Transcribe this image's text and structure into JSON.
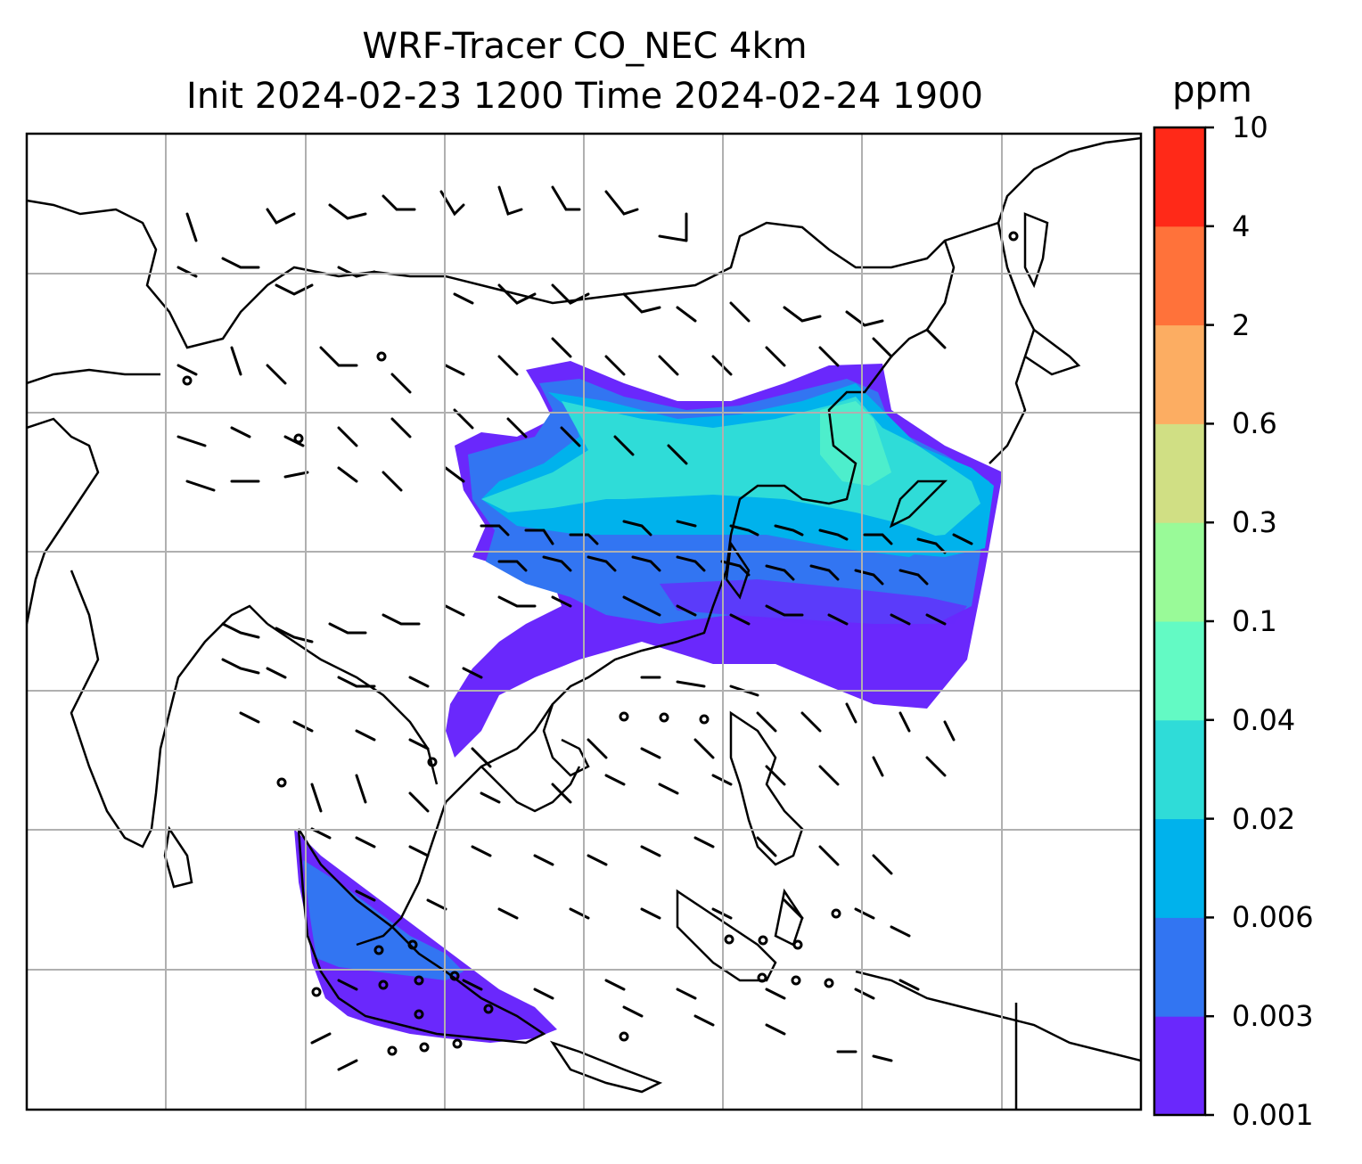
{
  "title": {
    "line1": "WRF-Tracer CO_NEC 4km",
    "line2": "Init 2024-02-23 1200 Time 2024-02-24 1900"
  },
  "colorbar": {
    "unit": "ppm",
    "levels": [
      "0.001",
      "0.003",
      "0.006",
      "0.02",
      "0.04",
      "0.1",
      "0.3",
      "0.6",
      "2",
      "4",
      "10"
    ],
    "colors": [
      "#6a28fc",
      "#3275f2",
      "#00b2ec",
      "#2fdcd8",
      "#63fac4",
      "#99fa98",
      "#d0df84",
      "#fcad62",
      "#ff723a",
      "#ff2918"
    ]
  },
  "map": {
    "gridlines": true,
    "coastline_color": "#000000",
    "grid_color": "#b0b0b0"
  }
}
